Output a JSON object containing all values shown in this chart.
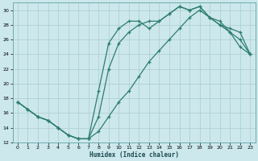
{
  "xlabel": "Humidex (Indice chaleur)",
  "bg_color": "#cce8ec",
  "grid_color": "#aacccc",
  "line_color": "#2e7d6e",
  "xlim": [
    -0.5,
    23.5
  ],
  "ylim": [
    12,
    31
  ],
  "xticks": [
    0,
    1,
    2,
    3,
    4,
    5,
    6,
    7,
    8,
    9,
    10,
    11,
    12,
    13,
    14,
    15,
    16,
    17,
    18,
    19,
    20,
    21,
    22,
    23
  ],
  "yticks": [
    12,
    14,
    16,
    18,
    20,
    22,
    24,
    26,
    28,
    30
  ],
  "line1_x": [
    0,
    1,
    2,
    3,
    4,
    5,
    6,
    7,
    8,
    9,
    10,
    11,
    12,
    13,
    14,
    15,
    16,
    17,
    18,
    19,
    20,
    21,
    22,
    23
  ],
  "line1_y": [
    17.5,
    16.5,
    15.5,
    15.0,
    14.0,
    13.0,
    12.5,
    12.5,
    13.5,
    15.5,
    17.5,
    19.0,
    21.0,
    23.0,
    24.5,
    26.0,
    27.5,
    29.0,
    30.0,
    29.0,
    28.5,
    27.0,
    25.0,
    24.0
  ],
  "line2_x": [
    0,
    1,
    2,
    3,
    4,
    5,
    6,
    7,
    8,
    9,
    10,
    11,
    12,
    13,
    14,
    15,
    16,
    17,
    18,
    19,
    20,
    21,
    22,
    23
  ],
  "line2_y": [
    17.5,
    16.5,
    15.5,
    15.0,
    14.0,
    13.0,
    12.5,
    12.5,
    19.0,
    25.5,
    27.5,
    28.5,
    28.5,
    27.5,
    28.5,
    29.5,
    30.5,
    30.0,
    30.5,
    29.0,
    28.0,
    27.5,
    27.0,
    24.0
  ],
  "line3_x": [
    0,
    1,
    2,
    3,
    4,
    5,
    6,
    7,
    8,
    9,
    10,
    11,
    12,
    13,
    14,
    15,
    16,
    17,
    18,
    19,
    20,
    21,
    22,
    23
  ],
  "line3_y": [
    17.5,
    16.5,
    15.5,
    15.0,
    14.0,
    13.0,
    12.5,
    12.5,
    15.5,
    22.0,
    25.5,
    27.0,
    28.0,
    28.5,
    28.5,
    29.5,
    30.5,
    30.0,
    30.5,
    29.0,
    28.0,
    27.0,
    26.0,
    24.0
  ]
}
